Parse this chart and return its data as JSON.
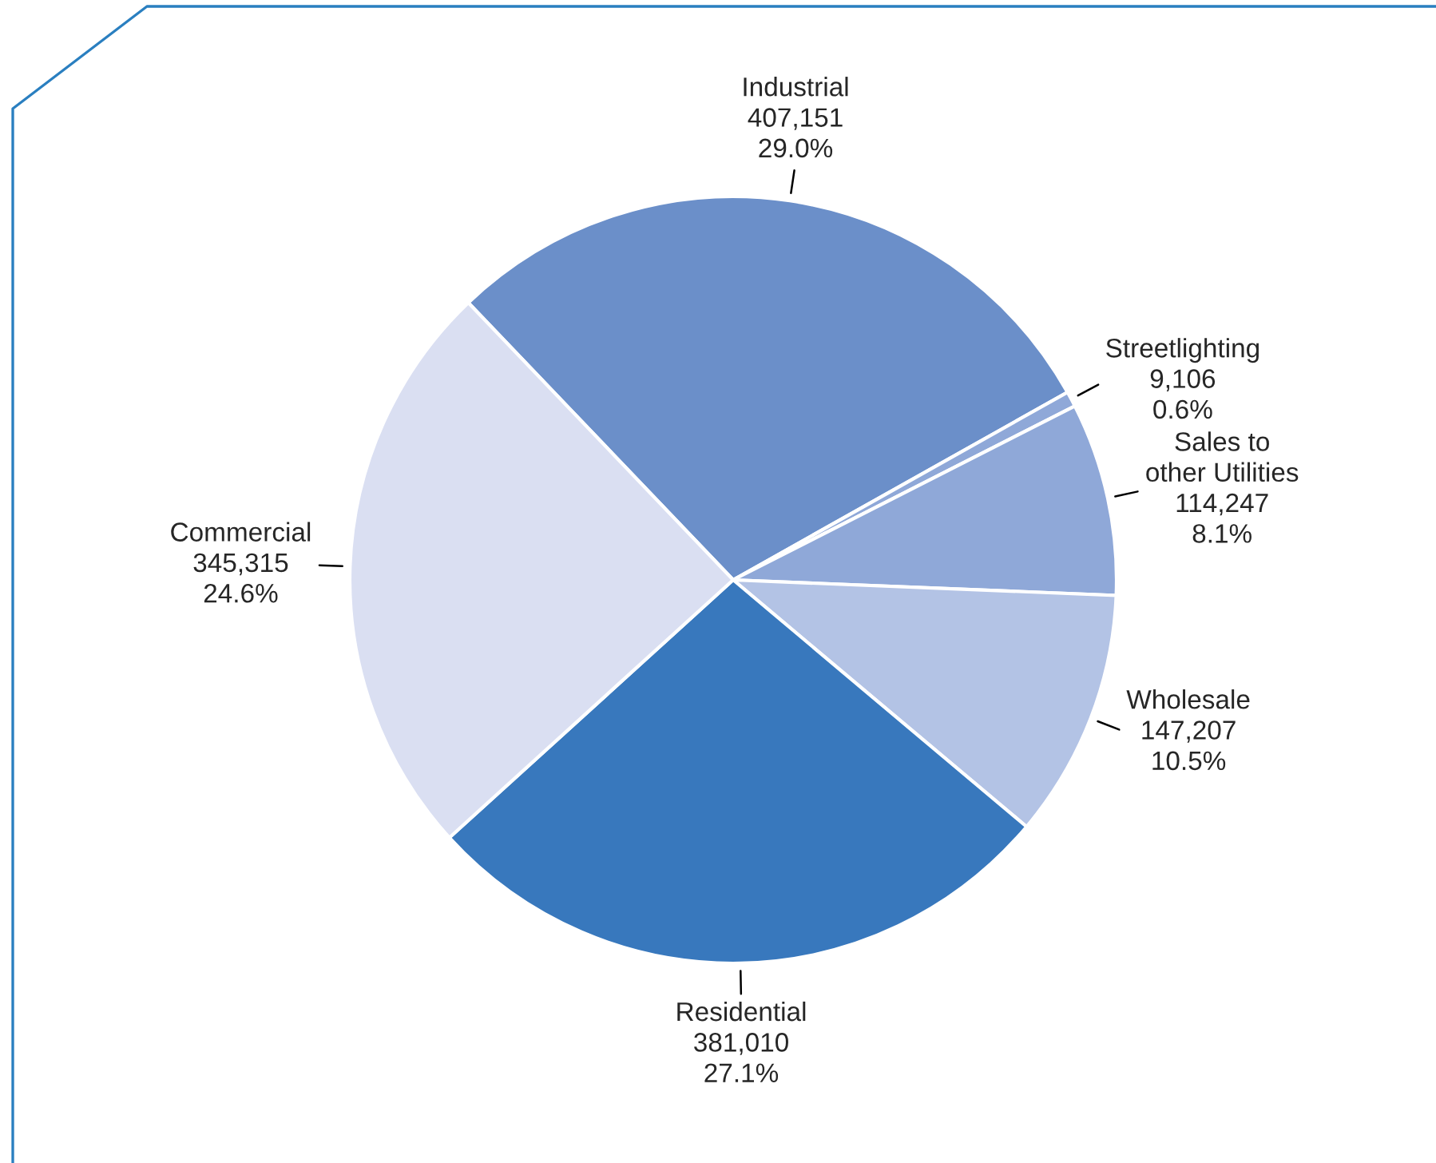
{
  "chart_data": {
    "type": "pie",
    "categories": [
      "Industrial",
      "Streetlighting",
      "Sales to\nother Utilities",
      "Wholesale",
      "Residential",
      "Commercial"
    ],
    "values": [
      407151,
      9106,
      114247,
      147207,
      381010,
      345315
    ],
    "value_labels": [
      "407,151\n29.0%",
      "9,106\n0.6%",
      "114,247\n8.1%",
      "147,207\n10.5%",
      "381,010\n27.1%",
      "345,315\n24.6%"
    ],
    "colors": [
      "#6b8fc9",
      "#8fa8d8",
      "#8fa8d8",
      "#b3c3e5",
      "#3878bd",
      "#dadff2"
    ],
    "legend": false
  }
}
